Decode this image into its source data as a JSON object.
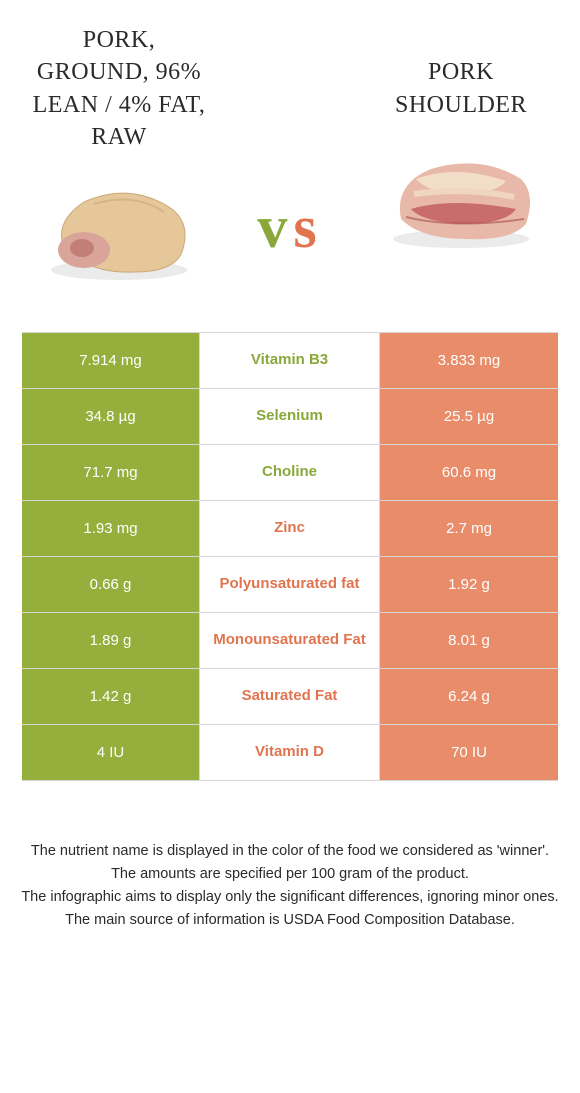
{
  "colors": {
    "left_bg": "#94af3b",
    "right_bg": "#e98c6a",
    "left_text": "#8aa83a",
    "right_text": "#e0744e",
    "border": "#d8d8d8",
    "body_text": "#2a2a2a"
  },
  "left": {
    "title": "Pork, ground, 96% lean / 4% fat, raw"
  },
  "right": {
    "title": "Pork shoulder"
  },
  "vs": {
    "v": "v",
    "s": "s"
  },
  "rows": [
    {
      "left": "7.914 mg",
      "label": "Vitamin B3",
      "right": "3.833 mg",
      "winner": "left"
    },
    {
      "left": "34.8 µg",
      "label": "Selenium",
      "right": "25.5 µg",
      "winner": "left"
    },
    {
      "left": "71.7 mg",
      "label": "Choline",
      "right": "60.6 mg",
      "winner": "left"
    },
    {
      "left": "1.93 mg",
      "label": "Zinc",
      "right": "2.7 mg",
      "winner": "right"
    },
    {
      "left": "0.66 g",
      "label": "Polyunsaturated fat",
      "right": "1.92 g",
      "winner": "right"
    },
    {
      "left": "1.89 g",
      "label": "Monounsaturated Fat",
      "right": "8.01 g",
      "winner": "right"
    },
    {
      "left": "1.42 g",
      "label": "Saturated Fat",
      "right": "6.24 g",
      "winner": "right"
    },
    {
      "left": "4 IU",
      "label": "Vitamin D",
      "right": "70 IU",
      "winner": "right"
    }
  ],
  "footer": {
    "l1": "The nutrient name is displayed in the color of the food we considered as 'winner'.",
    "l2": "The amounts are specified per 100 gram of the product.",
    "l3": "The infographic aims to display only the significant differences, ignoring minor ones.",
    "l4": "The main source of information is USDA Food Composition Database."
  }
}
